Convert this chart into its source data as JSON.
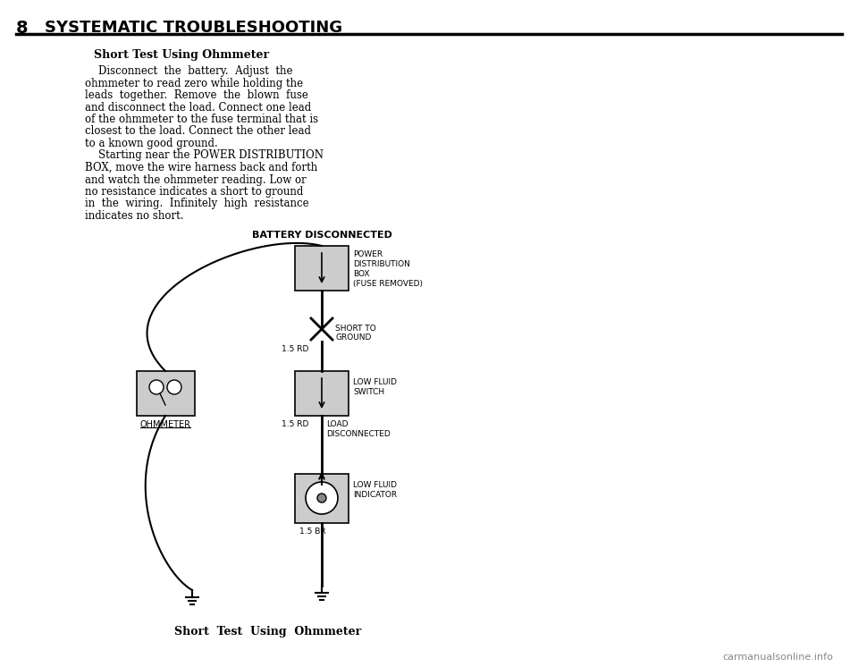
{
  "page_number": "8",
  "section_title": "SYSTEMATIC TROUBLESHOOTING",
  "subtitle": "Short Test Using Ohmmeter",
  "body_text_line1": "    Disconnect  the  battery.  Adjust  the",
  "body_text_line2": "ohmmeter to read zero while holding the",
  "body_text_line3": "leads  together.  Remove  the  blown  fuse",
  "body_text_line4": "and disconnect the load. Connect one lead",
  "body_text_line5": "of the ohmmeter to the fuse terminal that is",
  "body_text_line6": "closest to the load. Connect the other lead",
  "body_text_line7": "to a known good ground.",
  "body_text_line8": "    Starting near the POWER DISTRIBUTION",
  "body_text_line9": "BOX, move the wire harness back and forth",
  "body_text_line10": "and watch the ohmmeter reading. Low or",
  "body_text_line11": "no resistance indicates a short to ground",
  "body_text_line12": "in  the  wiring.  Infinitely  high  resistance",
  "body_text_line13": "indicates no short.",
  "diagram_title": "BATTERY DISCONNECTED",
  "label_power_dist": "POWER\nDISTRIBUTION\nBOX\n(FUSE REMOVED)",
  "label_short": "SHORT TO\nGROUND",
  "label_wire1": "1.5 RD",
  "label_ohmmeter": "OHMMETER",
  "label_low_fluid_switch": "LOW FLUID\nSWITCH",
  "label_wire2": "1.5 RD",
  "label_load": "LOAD\nDISCONNECTED",
  "label_low_fluid_ind": "LOW FLUID\nINDICATOR",
  "label_wire3": "1.5 BR",
  "caption": "Short  Test  Using  Ohmmeter",
  "watermark": "carmanualsonline.info",
  "bg_color": "#ffffff",
  "text_color": "#000000",
  "line_color": "#000000"
}
